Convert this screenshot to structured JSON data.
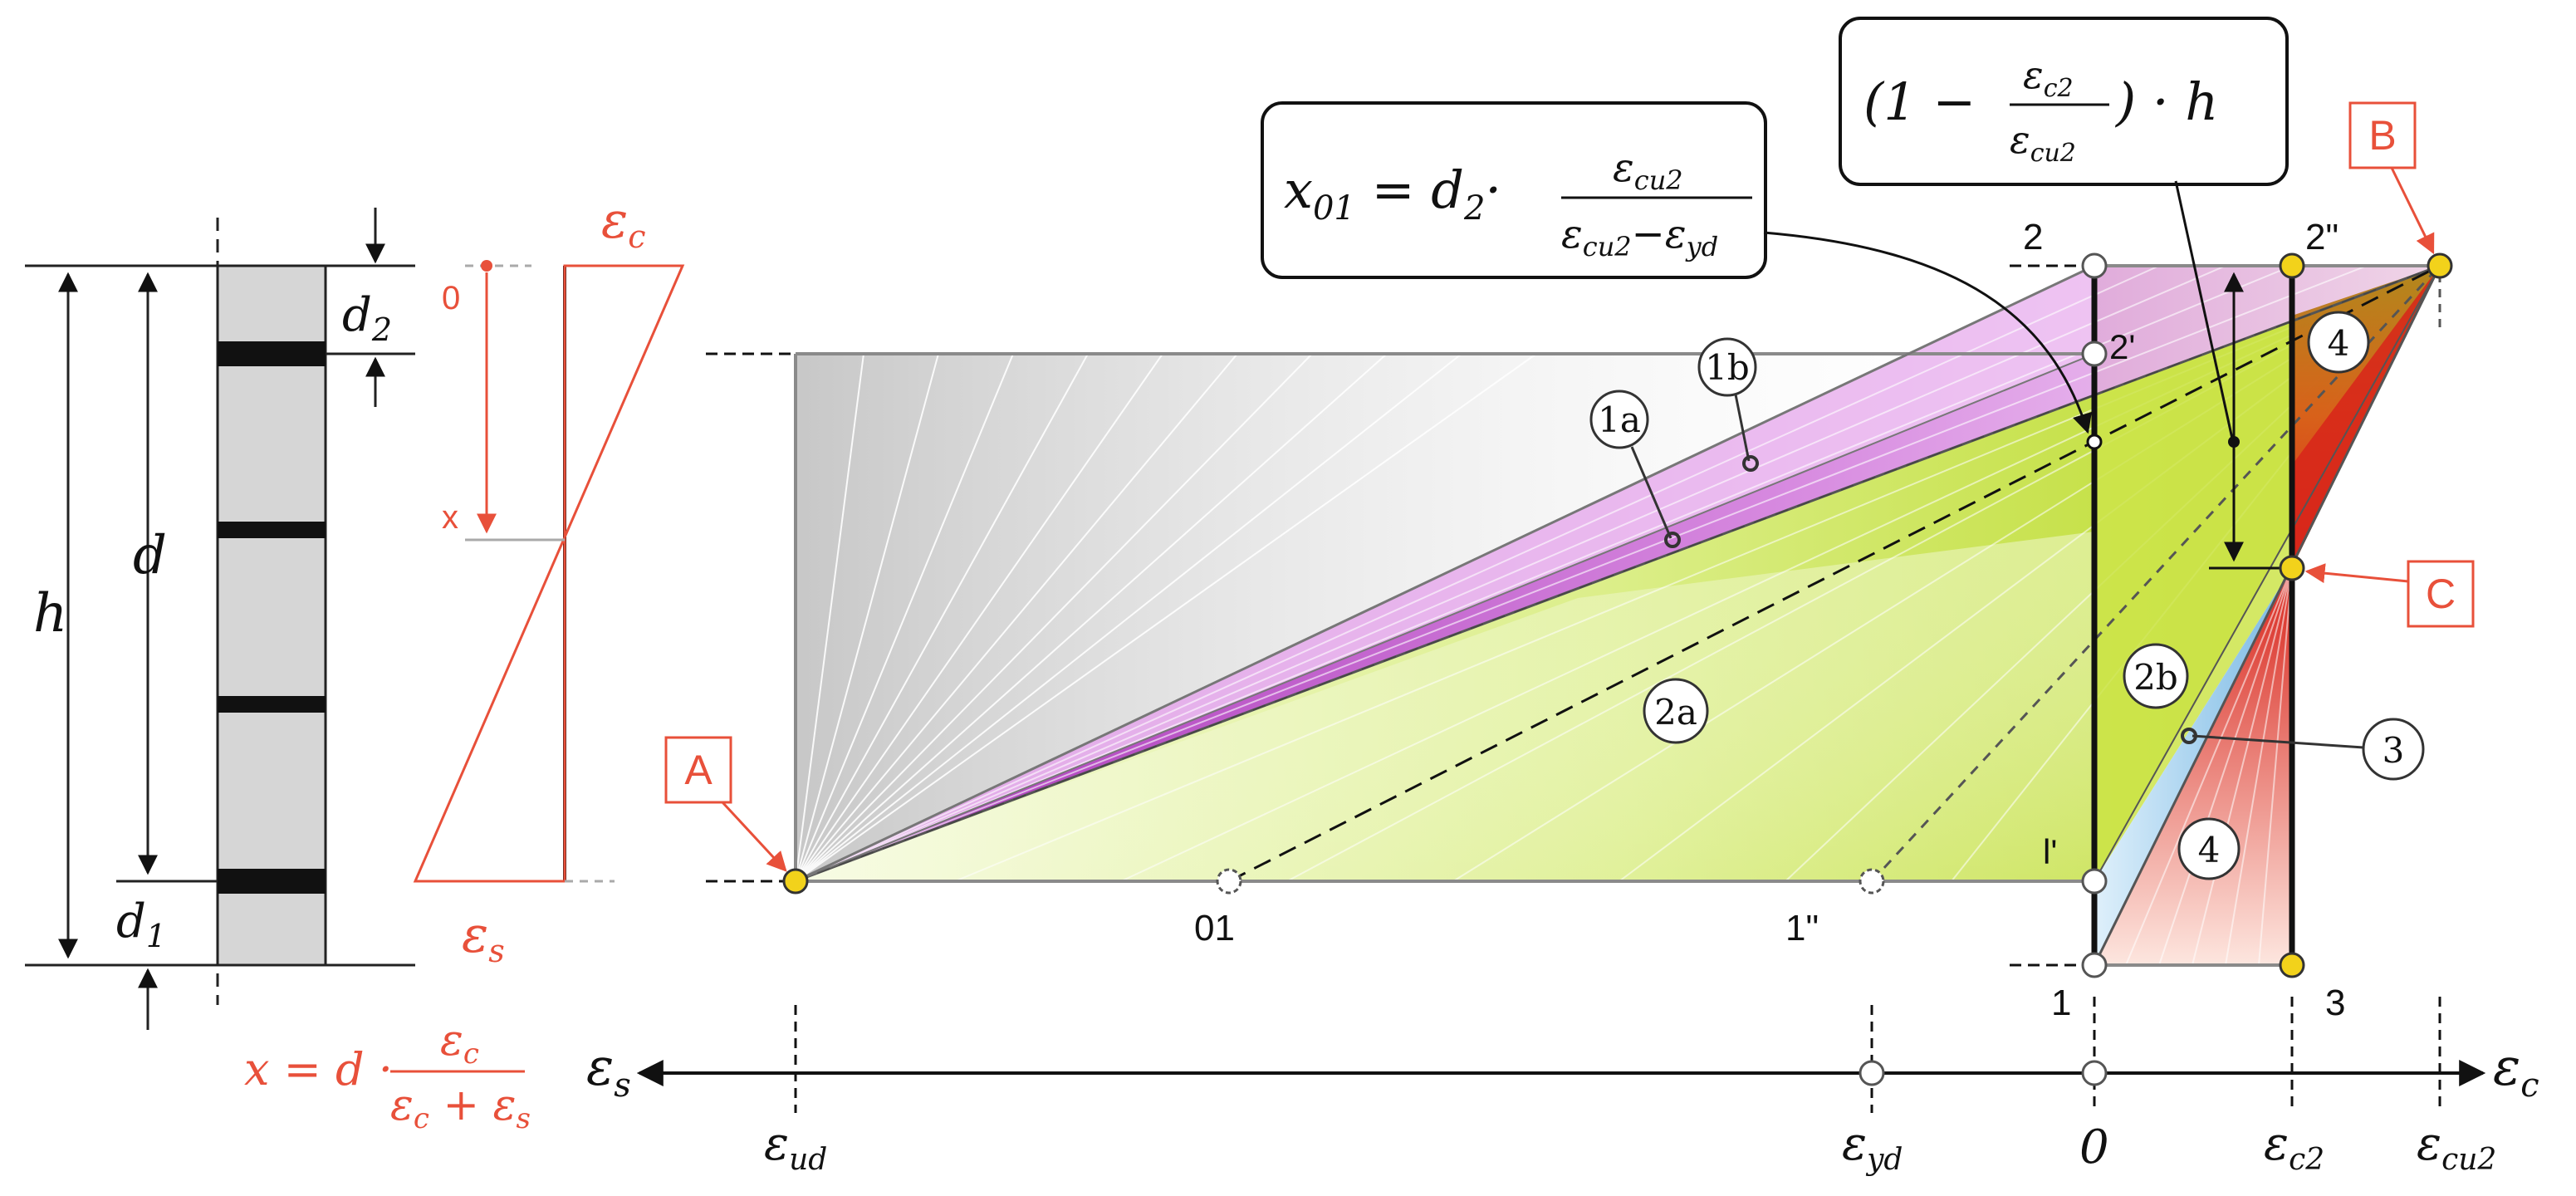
{
  "colors": {
    "red": "#e8503a",
    "yellow": "#f2d21b",
    "magenta": "#b040c0",
    "green": "#c6e23a",
    "blue": "#8cc6ea",
    "gray": "#8a8a8a",
    "black": "#111111"
  },
  "section": {
    "h": "h",
    "d": "d",
    "d1": "d",
    "d1_sub": "1",
    "d2": "d",
    "d2_sub": "2"
  },
  "strain_profile": {
    "zero": "0",
    "x": "x",
    "eps_c": "ε",
    "eps_c_sub": "c",
    "eps_s": "ε",
    "eps_s_sub": "s",
    "formula_lhs": "x = d ·",
    "formula_num": "ε",
    "formula_num_sub": "c",
    "formula_den": "ε",
    "formula_den_sub1": "c",
    "formula_den_plus": " + ε",
    "formula_den_sub2": "s"
  },
  "formulas": {
    "x01_lhs": "x",
    "x01_lhs_sub": "01",
    "x01_eq": " = d",
    "x01_eq_sub": "2",
    "x01_dot": "·",
    "x01_num": "ε",
    "x01_num_sub": "cu2",
    "x01_den": "ε",
    "x01_den_sub1": "cu2",
    "x01_den_minus": "−ε",
    "x01_den_sub2": "yd",
    "h_open": "(1 −",
    "h_num": "ε",
    "h_num_sub": "c2",
    "h_den": "ε",
    "h_den_sub": "cu2",
    "h_close": ") · h"
  },
  "points": {
    "A": "A",
    "B": "B",
    "C": "C"
  },
  "labels": {
    "top_2": "2",
    "top_2pp": "2\"",
    "top_2p": "2'",
    "pt_01": "01",
    "pt_1pp": "1\"",
    "pt_1p": "l'",
    "pt_1": "1",
    "pt_3": "3"
  },
  "regions": {
    "r1a": "1a",
    "r1b": "1b",
    "r2a": "2a",
    "r2b": "2b",
    "r3": "3",
    "r4_top": "4",
    "r4_bottom": "4"
  },
  "axis": {
    "eps_s_left": "ε",
    "eps_s_left_sub": "s",
    "eps_c_right": "ε",
    "eps_c_right_sub": "c",
    "tick_ud": "ε",
    "tick_ud_sub": "ud",
    "tick_yd": "ε",
    "tick_yd_sub": "yd",
    "tick_zero": "0",
    "tick_c2": "ε",
    "tick_c2_sub": "c2",
    "tick_cu2": "ε",
    "tick_cu2_sub": "cu2"
  }
}
